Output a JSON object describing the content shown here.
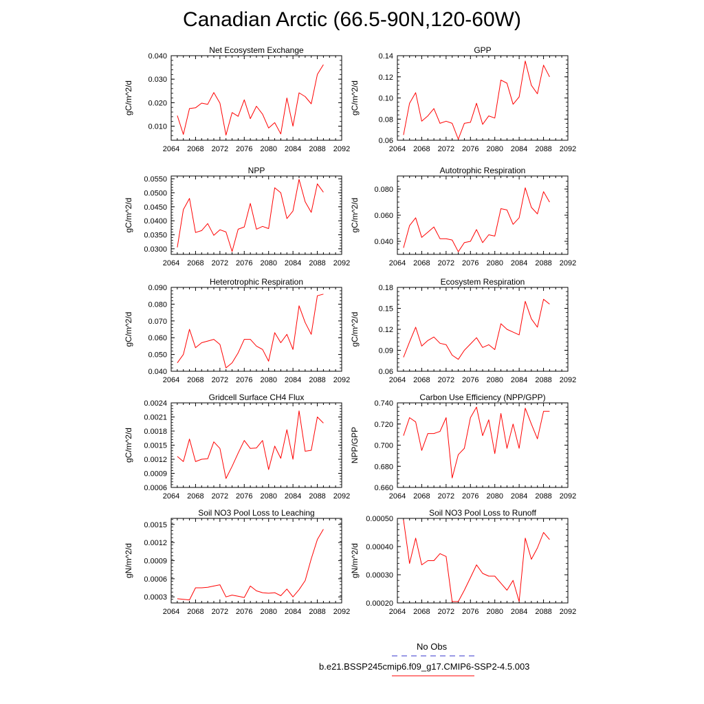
{
  "title": "Canadian Arctic (66.5-90N,120-60W)",
  "colors": {
    "model_line": "#ff0000",
    "obs_line": "#3333cc",
    "axis": "#000000"
  },
  "x_ticks": [
    "2064",
    "2068",
    "2072",
    "2076",
    "2080",
    "2084",
    "2088",
    "2092"
  ],
  "legend": {
    "obs_label": "No Obs",
    "model_label": "b.e21.BSSP245cmip6.f09_g17.CMIP6-SSP2-4.5.003"
  },
  "chart_data": [
    {
      "type": "line",
      "title": "Net Ecosystem Exchange",
      "ylabel": "gC/m^2/d",
      "xlim": [
        2064,
        2092
      ],
      "ylim": [
        0.004,
        0.04
      ],
      "yticks": [
        "0.010",
        "0.020",
        "0.030",
        "0.040"
      ],
      "x": [
        2065,
        2066,
        2067,
        2068,
        2069,
        2070,
        2071,
        2072,
        2073,
        2074,
        2075,
        2076,
        2077,
        2078,
        2079,
        2080,
        2081,
        2082,
        2083,
        2084,
        2085,
        2086,
        2087,
        2088,
        2089
      ],
      "values": [
        0.0145,
        0.0065,
        0.0175,
        0.0178,
        0.0198,
        0.0193,
        0.0243,
        0.0198,
        0.0062,
        0.0158,
        0.0142,
        0.0212,
        0.0132,
        0.0185,
        0.0151,
        0.0092,
        0.0115,
        0.0067,
        0.022,
        0.01,
        0.0242,
        0.0226,
        0.0195,
        0.032,
        0.0362
      ]
    },
    {
      "type": "line",
      "title": "GPP",
      "ylabel": "gC/m^2/d",
      "xlim": [
        2064,
        2092
      ],
      "ylim": [
        0.06,
        0.14
      ],
      "yticks": [
        "0.06",
        "0.08",
        "0.10",
        "0.12",
        "0.14"
      ],
      "x": [
        2065,
        2066,
        2067,
        2068,
        2069,
        2070,
        2071,
        2072,
        2073,
        2074,
        2075,
        2076,
        2077,
        2078,
        2079,
        2080,
        2081,
        2082,
        2083,
        2084,
        2085,
        2086,
        2087,
        2088,
        2089
      ],
      "values": [
        0.065,
        0.095,
        0.105,
        0.078,
        0.083,
        0.09,
        0.076,
        0.078,
        0.076,
        0.061,
        0.076,
        0.077,
        0.095,
        0.075,
        0.083,
        0.081,
        0.117,
        0.114,
        0.094,
        0.101,
        0.135,
        0.112,
        0.104,
        0.131,
        0.12
      ]
    },
    {
      "type": "line",
      "title": "NPP",
      "ylabel": "gC/m^2/d",
      "xlim": [
        2064,
        2092
      ],
      "ylim": [
        0.028,
        0.056
      ],
      "yticks": [
        "0.0300",
        "0.0350",
        "0.0400",
        "0.0450",
        "0.0500",
        "0.0550"
      ],
      "x": [
        2065,
        2066,
        2067,
        2068,
        2069,
        2070,
        2071,
        2072,
        2073,
        2074,
        2075,
        2076,
        2077,
        2078,
        2079,
        2080,
        2081,
        2082,
        2083,
        2084,
        2085,
        2086,
        2087,
        2088,
        2089
      ],
      "values": [
        0.0305,
        0.044,
        0.048,
        0.0358,
        0.0365,
        0.039,
        0.0348,
        0.0368,
        0.036,
        0.029,
        0.037,
        0.0378,
        0.0462,
        0.037,
        0.038,
        0.0372,
        0.0518,
        0.05,
        0.0408,
        0.0435,
        0.0548,
        0.0468,
        0.043,
        0.0532,
        0.0502
      ]
    },
    {
      "type": "line",
      "title": "Autotrophic Respiration",
      "ylabel": "gC/m^2/d",
      "xlim": [
        2064,
        2092
      ],
      "ylim": [
        0.03,
        0.09
      ],
      "yticks": [
        "0.040",
        "0.060",
        "0.080"
      ],
      "x": [
        2065,
        2066,
        2067,
        2068,
        2069,
        2070,
        2071,
        2072,
        2073,
        2074,
        2075,
        2076,
        2077,
        2078,
        2079,
        2080,
        2081,
        2082,
        2083,
        2084,
        2085,
        2086,
        2087,
        2088,
        2089
      ],
      "values": [
        0.035,
        0.052,
        0.058,
        0.043,
        0.047,
        0.051,
        0.042,
        0.042,
        0.041,
        0.032,
        0.039,
        0.04,
        0.049,
        0.039,
        0.045,
        0.044,
        0.065,
        0.064,
        0.053,
        0.058,
        0.081,
        0.066,
        0.061,
        0.078,
        0.07
      ]
    },
    {
      "type": "line",
      "title": "Heterotrophic Respiration",
      "ylabel": "gC/m^2/d",
      "xlim": [
        2064,
        2092
      ],
      "ylim": [
        0.04,
        0.09
      ],
      "yticks": [
        "0.040",
        "0.050",
        "0.060",
        "0.070",
        "0.080",
        "0.090"
      ],
      "x": [
        2065,
        2066,
        2067,
        2068,
        2069,
        2070,
        2071,
        2072,
        2073,
        2074,
        2075,
        2076,
        2077,
        2078,
        2079,
        2080,
        2081,
        2082,
        2083,
        2084,
        2085,
        2086,
        2087,
        2088,
        2089
      ],
      "values": [
        0.045,
        0.05,
        0.065,
        0.054,
        0.057,
        0.058,
        0.059,
        0.056,
        0.042,
        0.045,
        0.051,
        0.059,
        0.059,
        0.055,
        0.053,
        0.046,
        0.063,
        0.057,
        0.062,
        0.053,
        0.079,
        0.069,
        0.062,
        0.085,
        0.086
      ]
    },
    {
      "type": "line",
      "title": "Ecosystem Respiration",
      "ylabel": "gC/m^2/d",
      "xlim": [
        2064,
        2092
      ],
      "ylim": [
        0.06,
        0.18
      ],
      "yticks": [
        "0.06",
        "0.09",
        "0.12",
        "0.15",
        "0.18"
      ],
      "x": [
        2065,
        2066,
        2067,
        2068,
        2069,
        2070,
        2071,
        2072,
        2073,
        2074,
        2075,
        2076,
        2077,
        2078,
        2079,
        2080,
        2081,
        2082,
        2083,
        2084,
        2085,
        2086,
        2087,
        2088,
        2089
      ],
      "values": [
        0.08,
        0.102,
        0.123,
        0.096,
        0.104,
        0.109,
        0.1,
        0.098,
        0.083,
        0.077,
        0.09,
        0.099,
        0.108,
        0.094,
        0.098,
        0.091,
        0.128,
        0.12,
        0.116,
        0.112,
        0.16,
        0.135,
        0.123,
        0.163,
        0.156
      ]
    },
    {
      "type": "line",
      "title": "Gridcell Surface CH4 Flux",
      "ylabel": "gC/m^2/d",
      "xlim": [
        2064,
        2092
      ],
      "ylim": [
        0.0006,
        0.0024
      ],
      "yticks": [
        "0.0006",
        "0.0009",
        "0.0012",
        "0.0015",
        "0.0018",
        "0.0021",
        "0.0024"
      ],
      "x": [
        2065,
        2066,
        2067,
        2068,
        2069,
        2070,
        2071,
        2072,
        2073,
        2074,
        2075,
        2076,
        2077,
        2078,
        2079,
        2080,
        2081,
        2082,
        2083,
        2084,
        2085,
        2086,
        2087,
        2088,
        2089
      ],
      "values": [
        0.00126,
        0.00115,
        0.00163,
        0.00115,
        0.0012,
        0.00121,
        0.00157,
        0.00143,
        0.00079,
        0.00105,
        0.00133,
        0.0016,
        0.00143,
        0.00144,
        0.0016,
        0.00098,
        0.00148,
        0.00122,
        0.00183,
        0.0012,
        0.00223,
        0.00137,
        0.00139,
        0.0021,
        0.00197
      ]
    },
    {
      "type": "line",
      "title": "Carbon Use Efficiency (NPP/GPP)",
      "ylabel": "NPP/GPP",
      "xlim": [
        2064,
        2092
      ],
      "ylim": [
        0.66,
        0.74
      ],
      "yticks": [
        "0.660",
        "0.680",
        "0.700",
        "0.720",
        "0.740"
      ],
      "x": [
        2065,
        2066,
        2067,
        2068,
        2069,
        2070,
        2071,
        2072,
        2073,
        2074,
        2075,
        2076,
        2077,
        2078,
        2079,
        2080,
        2081,
        2082,
        2083,
        2084,
        2085,
        2086,
        2087,
        2088,
        2089
      ],
      "values": [
        0.709,
        0.726,
        0.722,
        0.695,
        0.711,
        0.711,
        0.713,
        0.726,
        0.669,
        0.691,
        0.697,
        0.726,
        0.736,
        0.709,
        0.724,
        0.692,
        0.73,
        0.697,
        0.72,
        0.697,
        0.735,
        0.72,
        0.706,
        0.732,
        0.732
      ]
    },
    {
      "type": "line",
      "title": "Soil NO3 Pool Loss to Leaching",
      "ylabel": "gN/m^2/d",
      "xlim": [
        2064,
        2092
      ],
      "ylim": [
        0.0002,
        0.0016
      ],
      "yticks": [
        "0.0003",
        "0.0006",
        "0.0009",
        "0.0012",
        "0.0015"
      ],
      "x": [
        2065,
        2066,
        2067,
        2068,
        2069,
        2070,
        2071,
        2072,
        2073,
        2074,
        2075,
        2076,
        2077,
        2078,
        2079,
        2080,
        2081,
        2082,
        2083,
        2084,
        2085,
        2086,
        2087,
        2088,
        2089
      ],
      "values": [
        0.00027,
        0.00026,
        0.00025,
        0.00045,
        0.00045,
        0.00046,
        0.00048,
        0.0005,
        0.0003,
        0.00033,
        0.00031,
        0.00029,
        0.00048,
        0.0004,
        0.00037,
        0.00036,
        0.00037,
        0.00032,
        0.00043,
        0.0003,
        0.00042,
        0.00057,
        0.00093,
        0.00125,
        0.00142
      ]
    },
    {
      "type": "line",
      "title": "Soil NO3 Pool Loss to Runoff",
      "ylabel": "gN/m^2/d",
      "xlim": [
        2064,
        2092
      ],
      "ylim": [
        0.0002,
        0.0005
      ],
      "yticks": [
        "0.00020",
        "0.00030",
        "0.00040",
        "0.00050"
      ],
      "x": [
        2065,
        2066,
        2067,
        2068,
        2069,
        2070,
        2071,
        2072,
        2073,
        2074,
        2075,
        2076,
        2077,
        2078,
        2079,
        2080,
        2081,
        2082,
        2083,
        2084,
        2085,
        2086,
        2087,
        2088,
        2089
      ],
      "values": [
        0.000495,
        0.00034,
        0.00043,
        0.000335,
        0.00035,
        0.00035,
        0.000375,
        0.000365,
        0.000205,
        0.000205,
        0.000245,
        0.00029,
        0.000335,
        0.000305,
        0.000295,
        0.000295,
        0.00027,
        0.000245,
        0.00028,
        0.000205,
        0.00043,
        0.000355,
        0.000395,
        0.00045,
        0.000425
      ]
    }
  ]
}
